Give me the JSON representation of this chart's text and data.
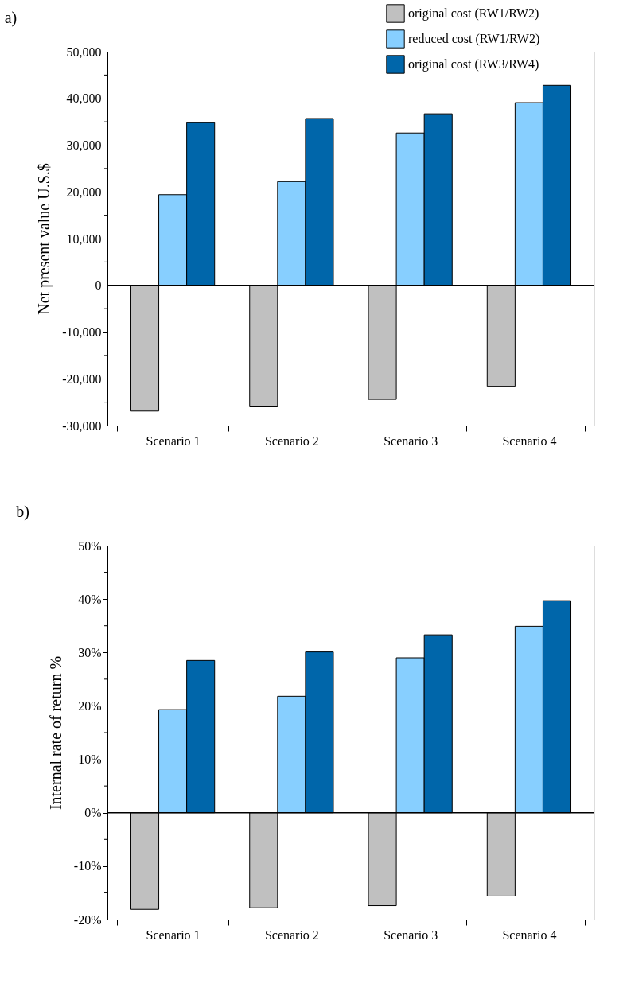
{
  "chart_data": [
    {
      "type": "bar",
      "title": "a)",
      "ylabel": "Net present value U.S.$",
      "categories": [
        "Scenario 1",
        "Scenario 2",
        "Scenario 3",
        "Scenario 4"
      ],
      "series": [
        {
          "name": "original cost (RW1/RW2)",
          "color": "#c0c0c0",
          "values": [
            -26900,
            -26000,
            -24400,
            -21600
          ]
        },
        {
          "name": "reduced cost (RW1/RW2)",
          "color": "#87cfff",
          "values": [
            19400,
            22200,
            32600,
            39100
          ]
        },
        {
          "name": "original cost (RW3/RW4)",
          "color": "#0066aa",
          "values": [
            34800,
            35700,
            36700,
            42800
          ]
        }
      ],
      "ylim": [
        -30000,
        50000
      ],
      "yticks": [
        {
          "value": -30000,
          "label": "-30,000"
        },
        {
          "value": -25000,
          "label": null
        },
        {
          "value": -20000,
          "label": "-20,000"
        },
        {
          "value": -15000,
          "label": null
        },
        {
          "value": -10000,
          "label": "-10,000"
        },
        {
          "value": -5000,
          "label": null
        },
        0,
        {
          "value": 5000,
          "label": null
        },
        {
          "value": 10000,
          "label": "10,000"
        },
        {
          "value": 15000,
          "label": null
        },
        {
          "value": 20000,
          "label": "20,000"
        },
        {
          "value": 25000,
          "label": null
        },
        {
          "value": 30000,
          "label": "30,000"
        },
        {
          "value": 35000,
          "label": null
        },
        {
          "value": 40000,
          "label": "40,000"
        },
        {
          "value": 45000,
          "label": null
        },
        {
          "value": 50000,
          "label": "50,000"
        }
      ],
      "ref_lines": [
        {
          "axis": "y",
          "value": 0,
          "color": "#000000"
        }
      ],
      "grid": false,
      "legend": "top right"
    },
    {
      "type": "bar",
      "title": "b)",
      "ylabel": "Internal rate of return %",
      "categories": [
        "Scenario 1",
        "Scenario 2",
        "Scenario 3",
        "Scenario 4"
      ],
      "series": [
        {
          "name": "original cost (RW1/RW2)",
          "color": "#c0c0c0",
          "values": [
            -18.1,
            -17.8,
            -17.4,
            -15.6
          ]
        },
        {
          "name": "reduced cost (RW1/RW2)",
          "color": "#87cfff",
          "values": [
            19.3,
            21.8,
            29.0,
            34.9
          ]
        },
        {
          "name": "original cost (RW3/RW4)",
          "color": "#0066aa",
          "values": [
            28.5,
            30.1,
            33.3,
            39.7
          ]
        }
      ],
      "ylim": [
        -20,
        50
      ],
      "yticks": [
        {
          "value": -20,
          "label": "-20%"
        },
        {
          "value": -15,
          "label": null
        },
        {
          "value": -10,
          "label": "-10%"
        },
        {
          "value": -5,
          "label": null
        },
        {
          "value": 0,
          "label": "0%"
        },
        {
          "value": 5,
          "label": null
        },
        {
          "value": 10,
          "label": "10%"
        },
        {
          "value": 15,
          "label": null
        },
        {
          "value": 20,
          "label": "20%"
        },
        {
          "value": 25,
          "label": null
        },
        {
          "value": 30,
          "label": "30%"
        },
        {
          "value": 35,
          "label": null
        },
        {
          "value": 40,
          "label": "40%"
        },
        {
          "value": 45,
          "label": null
        },
        {
          "value": 50,
          "label": "50%"
        }
      ],
      "ref_lines": [
        {
          "axis": "y",
          "value": 0,
          "color": "#000000"
        }
      ],
      "grid": false,
      "legend": "top right"
    }
  ]
}
